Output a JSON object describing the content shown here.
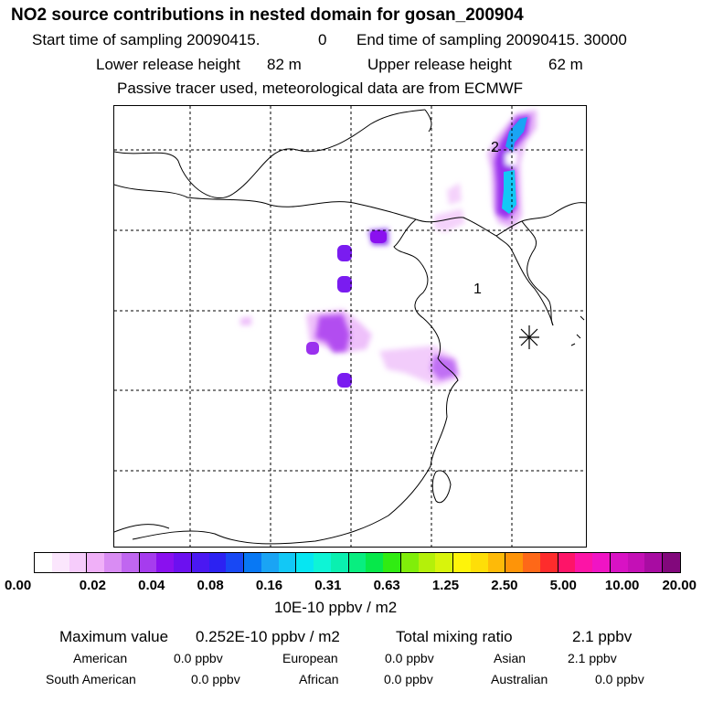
{
  "header": {
    "title": "NO2 source contributions in nested domain for gosan_200904",
    "start_label": "Start time of sampling 20090415.",
    "start_value": "0",
    "end_label": "End time of sampling 20090415. 30000",
    "lower_label": "Lower release height",
    "lower_value": "82 m",
    "upper_label": "Upper release height",
    "upper_value": "62 m",
    "note": "Passive tracer used, meteorological data are from ECMWF"
  },
  "map": {
    "contour_labels": [
      "2",
      "1"
    ],
    "receptor_marker": "asterisk-icon"
  },
  "colorbar": {
    "colors": [
      "#ffffff",
      "#fbe6fd",
      "#f6ccfb",
      "#f0b0f8",
      "#d98cf3",
      "#c066f0",
      "#a63cee",
      "#8a10ef",
      "#6c10f0",
      "#4a18f2",
      "#2c22f2",
      "#1848f4",
      "#0878f4",
      "#1aa4f4",
      "#12c8f6",
      "#06e6f2",
      "#0ef4d6",
      "#0af0b0",
      "#08ee80",
      "#06e84a",
      "#30ec12",
      "#80ee0a",
      "#b4f00a",
      "#d8f40c",
      "#fef40a",
      "#fede08",
      "#feba08",
      "#fe9408",
      "#fe6818",
      "#fe2c2c",
      "#fe1468",
      "#fc14a6",
      "#f014c4",
      "#d812c4",
      "#c410b6",
      "#a80ca2",
      "#82087c"
    ],
    "tick_labels": [
      "0.00",
      "0.02",
      "0.04",
      "0.08",
      "0.16",
      "0.31",
      "0.63",
      "1.25",
      "2.50",
      "5.00",
      "10.00",
      "20.00"
    ],
    "unit": "10E-10 ppbv / m2"
  },
  "stats": {
    "max_label": "Maximum value",
    "max_value": "0.252E-10 ppbv / m2",
    "total_label": "Total mixing ratio",
    "total_value": "2.1 ppbv",
    "regions": [
      {
        "name": "American",
        "value": "0.0 ppbv"
      },
      {
        "name": "European",
        "value": "0.0 ppbv"
      },
      {
        "name": "Asian",
        "value": "2.1 ppbv"
      },
      {
        "name": "South American",
        "value": "0.0 ppbv"
      },
      {
        "name": "African",
        "value": "0.0 ppbv"
      },
      {
        "name": "Australian",
        "value": "0.0 ppbv"
      }
    ]
  }
}
